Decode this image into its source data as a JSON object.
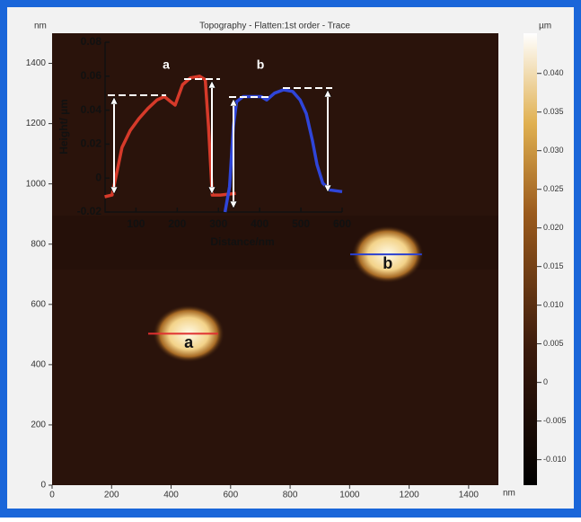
{
  "chart_data": [
    {
      "type": "image",
      "title": "Topography - Flatten:1st order - Trace",
      "x_unit": "nm",
      "y_unit": "nm",
      "xlim": [
        0,
        1500
      ],
      "ylim": [
        0,
        1500
      ],
      "xticks": [
        0,
        200,
        400,
        600,
        800,
        1000,
        1200,
        1400
      ],
      "yticks": [
        0,
        200,
        400,
        600,
        800,
        1000,
        1200,
        1400
      ],
      "features": [
        {
          "label": "a",
          "x": 459,
          "y": 503,
          "line": [
            323,
            558
          ],
          "color": "#e03030"
        },
        {
          "label": "b",
          "x": 1128,
          "y": 766,
          "line": [
            1002,
            1243
          ],
          "color": "#2a40d0"
        }
      ],
      "colorbar": {
        "label": "µm",
        "lim": [
          -0.0133,
          0.0452
        ],
        "ticks": [
          {
            "value": 0.04,
            "label": "0.040"
          },
          0.035,
          {
            "value": 0.03,
            "label": "0.030"
          },
          0.025,
          {
            "value": 0.02,
            "label": "0.020"
          },
          0.015,
          {
            "value": 0.01,
            "label": "0.010"
          },
          0.005,
          0,
          -0.005,
          {
            "value": -0.01,
            "label": "-0.010"
          }
        ]
      }
    },
    {
      "type": "line",
      "x_label": "Distance/nm",
      "y_label": "Height/ µm",
      "xlim": [
        25,
        600
      ],
      "xticks": [
        100,
        200,
        300,
        400,
        500,
        600
      ],
      "ylim": [
        -0.02,
        0.08
      ],
      "yticks": [
        0.08,
        0.06,
        0.04,
        0.02,
        0,
        -0.02
      ],
      "series": [
        {
          "name": "a",
          "color": "#d63a2a",
          "x": [
            24,
            42,
            55,
            66,
            86,
            107,
            129,
            151,
            169,
            184,
            195,
            213,
            232,
            254,
            268,
            276,
            285,
            305,
            342
          ],
          "values": [
            -0.011,
            -0.01,
            0.005,
            0.018,
            0.028,
            0.035,
            0.041,
            0.046,
            0.048,
            0.045,
            0.043,
            0.055,
            0.059,
            0.06,
            0.058,
            0.03,
            -0.01,
            -0.01,
            -0.009
          ]
        },
        {
          "name": "b",
          "color": "#2f45d8",
          "x": [
            316,
            327,
            336,
            344,
            360,
            382,
            404,
            417,
            436,
            458,
            480,
            498,
            513,
            528,
            539,
            553,
            570,
            600
          ],
          "values": [
            -0.02,
            -0.005,
            0.03,
            0.045,
            0.048,
            0.048,
            0.048,
            0.046,
            0.05,
            0.052,
            0.051,
            0.046,
            0.038,
            0.022,
            0.008,
            -0.003,
            -0.007,
            -0.008
          ]
        }
      ]
    }
  ]
}
